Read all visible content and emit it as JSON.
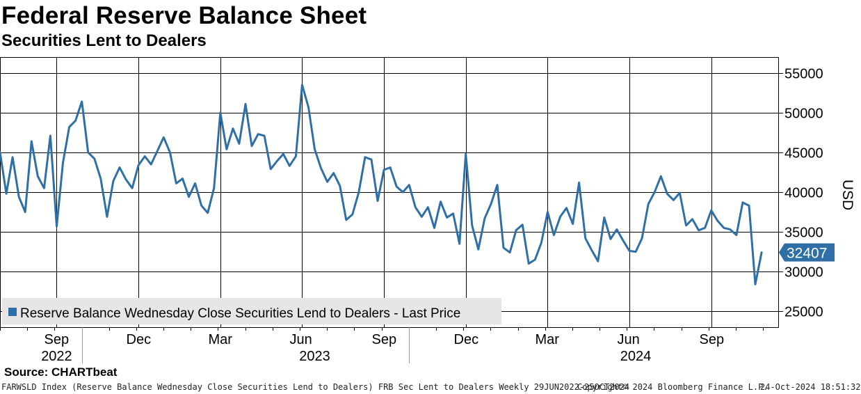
{
  "header": {
    "title": "Federal Reserve Balance Sheet",
    "subtitle": "Securities Lent to Dealers"
  },
  "source": "Source: CHARTbeat",
  "footer": {
    "description": "FARWSLD Index (Reserve Balance Wednesday Close Securities Lend to Dealers) FRB Sec Lent to Dealers  Weekly 29JUN2022-25OCT2024",
    "copyright": "Copyright© 2024 Bloomberg Finance L.P.",
    "timestamp": "24-Oct-2024 18:51:32"
  },
  "colors": {
    "line": "#2f6fa7",
    "label_bg": "#2f6fa7",
    "grid": "#000000"
  },
  "chart_data": {
    "type": "line",
    "title": "Federal Reserve Balance Sheet",
    "subtitle": "Securities Lent to Dealers",
    "ylabel": "USD",
    "ylim": [
      23000,
      57000
    ],
    "yticks": [
      25000,
      30000,
      35000,
      40000,
      45000,
      50000,
      55000
    ],
    "ytick_labels": [
      "25000",
      "30000",
      "35000",
      "40000",
      "45000",
      "50000",
      "55000"
    ],
    "axis_side": "right",
    "grid": true,
    "month_ticks": [
      "Sep",
      "Dec",
      "Mar",
      "Jun",
      "Sep",
      "Dec",
      "Mar",
      "Jun",
      "Sep"
    ],
    "month_tick_weeks": [
      9,
      22,
      35,
      48,
      61,
      74,
      87,
      100,
      113
    ],
    "year_labels": [
      {
        "label": "2022",
        "center_week": 9
      },
      {
        "label": "2023",
        "center_week": 50
      },
      {
        "label": "2024",
        "center_week": 101
      }
    ],
    "year_separator_weeks": [
      13,
      65
    ],
    "legend": {
      "label": "Reserve Balance Wednesday Close Securities Lend to Dealers - Last Price",
      "placement": "bottom-left"
    },
    "last_value": 32407,
    "last_value_label": "32407",
    "series": [
      {
        "name": "Reserve Balance Wednesday Close Securities Lend to Dealers - Last Price",
        "x_unit": "weeks since 29JUN2022",
        "values": [
          45000,
          39800,
          44400,
          39400,
          37500,
          46400,
          42000,
          40500,
          47100,
          35700,
          43700,
          48200,
          49000,
          51400,
          45000,
          44200,
          41700,
          36900,
          41400,
          43100,
          41600,
          40500,
          43400,
          44500,
          43500,
          45200,
          46900,
          45000,
          41100,
          41700,
          39400,
          41100,
          38300,
          37400,
          40500,
          50000,
          45400,
          48000,
          46100,
          51100,
          45800,
          47300,
          47100,
          42900,
          43900,
          44800,
          43300,
          44500,
          53500,
          50700,
          45400,
          43000,
          41300,
          42400,
          40800,
          36500,
          37200,
          40000,
          44400,
          44100,
          38900,
          42800,
          43100,
          40700,
          40000,
          40900,
          38100,
          36900,
          38100,
          35500,
          38800,
          36800,
          37300,
          33500,
          44800,
          35800,
          32800,
          36700,
          38500,
          40900,
          33000,
          32400,
          35200,
          35900,
          31000,
          31500,
          33600,
          37500,
          34600,
          36900,
          38000,
          36000,
          41200,
          34200,
          32700,
          31300,
          36800,
          34100,
          35300,
          33900,
          32600,
          32500,
          34200,
          38500,
          40000,
          42000,
          39800,
          39000,
          39900,
          35800,
          36600,
          35200,
          35500,
          37700,
          36400,
          35500,
          35300,
          34600,
          38700,
          38300,
          28400,
          32407
        ]
      }
    ]
  }
}
